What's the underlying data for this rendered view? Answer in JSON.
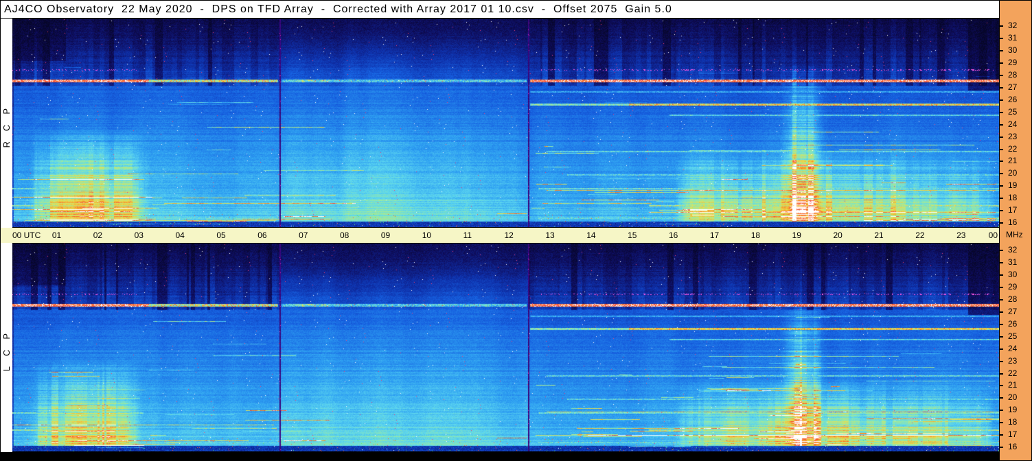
{
  "title": {
    "text": "AJ4CO Observatory  22 May 2020  -  DPS on TFD Array  -  Corrected with Array 2017 01 10.csv  -  Offset 2075  Gain 5.0"
  },
  "colors": {
    "titlebar_bg": "#FFFFFF",
    "time_axis_bg": "#F6F6C6",
    "freq_sidebar_bg": "#F3A35C",
    "left_strip_bg": "#FFFFFF",
    "border": "#000000",
    "bottom_strip_bg": "#000000"
  },
  "time_axis": {
    "labels": [
      "00 UTC",
      "01",
      "02",
      "03",
      "04",
      "05",
      "06",
      "07",
      "08",
      "09",
      "10",
      "11",
      "12",
      "13",
      "14",
      "15",
      "16",
      "17",
      "18",
      "19",
      "20",
      "21",
      "22",
      "23",
      "00"
    ],
    "unit_label": "MHz"
  },
  "freq_axis": {
    "ticks": [
      32,
      31,
      30,
      29,
      28,
      27,
      26,
      25,
      24,
      23,
      22,
      21,
      20,
      19,
      18,
      17,
      16
    ]
  },
  "chart_data": {
    "type": "heatmap",
    "title": "Dual-polarization decametric dynamic spectrum, 22 May 2020 (RCP over LCP)",
    "x_axis": {
      "label": "UTC",
      "min_hour": 0,
      "max_hour": 24
    },
    "y_axis": {
      "label": "MHz",
      "min": 16,
      "max": 32
    },
    "segment_boundaries_utc": [
      6.5,
      12.55
    ],
    "colormap": [
      [
        0.0,
        6,
        6,
        38
      ],
      [
        0.07,
        14,
        12,
        90
      ],
      [
        0.18,
        14,
        48,
        170
      ],
      [
        0.3,
        22,
        96,
        224
      ],
      [
        0.44,
        46,
        160,
        242
      ],
      [
        0.56,
        92,
        214,
        240
      ],
      [
        0.66,
        148,
        233,
        168
      ],
      [
        0.76,
        224,
        226,
        88
      ],
      [
        0.86,
        250,
        170,
        44
      ],
      [
        0.93,
        244,
        78,
        44
      ],
      [
        1.0,
        255,
        255,
        255
      ]
    ],
    "rfi_bands": [
      {
        "mhz": 27.25,
        "px": 4,
        "style": "white",
        "segs": [
          [
            0,
            3.3,
            1.0
          ],
          [
            3.3,
            6.45,
            0.5
          ],
          [
            6.9,
            7.7,
            0.3
          ],
          [
            6.55,
            12.5,
            0.12
          ],
          [
            12.6,
            24,
            0.95
          ]
        ]
      },
      {
        "mhz": 28.1,
        "px": 2,
        "style": "magenta",
        "segs": [
          [
            0,
            3.0,
            0.45
          ],
          [
            12.8,
            24,
            0.5
          ]
        ]
      },
      {
        "mhz": 26.4,
        "px": 2,
        "style": "blue",
        "segs": [
          [
            12.6,
            24,
            0.35
          ]
        ]
      },
      {
        "mhz": 25.45,
        "px": 3,
        "style": "yellow",
        "segs": [
          [
            12.6,
            15,
            0.3
          ],
          [
            15,
            24,
            0.85
          ]
        ]
      },
      {
        "mhz": 24.6,
        "px": 2,
        "style": "green",
        "segs": [
          [
            16,
            24,
            0.3
          ]
        ]
      },
      {
        "mhz": 21.8,
        "px": 2,
        "style": "green",
        "segs": [
          [
            13,
            24,
            0.35
          ]
        ]
      },
      {
        "mhz": 20.0,
        "px": 2,
        "style": "green",
        "segs": [
          [
            13.5,
            24,
            0.3
          ]
        ]
      },
      {
        "mhz": 18.9,
        "px": 2,
        "style": "green",
        "segs": [
          [
            0,
            3.2,
            0.5
          ],
          [
            12.8,
            24,
            0.45
          ]
        ]
      },
      {
        "mhz": 17.6,
        "px": 2,
        "style": "yellow",
        "segs": [
          [
            0,
            2.5,
            0.45
          ],
          [
            15.5,
            24,
            0.5
          ]
        ]
      },
      {
        "mhz": 16.65,
        "px": 2,
        "style": "green",
        "segs": [
          [
            0.3,
            6.4,
            0.3
          ],
          [
            12.8,
            24,
            0.35
          ]
        ]
      }
    ],
    "panels": [
      {
        "id": "rcp",
        "label": "RCP",
        "seed": 7,
        "emissions": [
          {
            "t0": 0.3,
            "t1": 3.4,
            "tp": 1.9,
            "w": 0.9,
            "fmax": 23.5,
            "amp": 0.45
          },
          {
            "t0": 16.0,
            "t1": 24.0,
            "tp": 19.6,
            "w": 2.6,
            "fmax": 22.0,
            "amp": 0.4
          },
          {
            "t0": 18.6,
            "t1": 19.9,
            "tp": 19.2,
            "w": 0.35,
            "fmax": 28.5,
            "amp": 0.5,
            "pw": 0.45
          }
        ],
        "extra_lines": [
          {
            "f": 18.3,
            "t0": 0,
            "t1": 3.4,
            "s": 0.55
          },
          {
            "f": 17.3,
            "t0": 0,
            "t1": 2.2,
            "s": 0.5
          },
          {
            "f": 16.5,
            "t0": 0.3,
            "t1": 6.4,
            "s": 0.3
          },
          {
            "f": 16.8,
            "t0": 6.6,
            "t1": 7.6,
            "s": 0.5
          },
          {
            "f": 17.0,
            "t0": 11.8,
            "t1": 12.5,
            "s": 0.4
          },
          {
            "f": 18.8,
            "t0": 13,
            "t1": 24,
            "s": 0.4
          },
          {
            "f": 17.1,
            "t0": 15.5,
            "t1": 24,
            "s": 0.45
          }
        ]
      },
      {
        "id": "lcp",
        "label": "LCP",
        "seed": 13,
        "emissions": [
          {
            "t0": 0.3,
            "t1": 3.2,
            "tp": 1.9,
            "w": 0.9,
            "fmax": 23.0,
            "amp": 0.42
          },
          {
            "t0": 16.0,
            "t1": 24.0,
            "tp": 19.6,
            "w": 2.6,
            "fmax": 21.5,
            "amp": 0.38
          },
          {
            "t0": 18.6,
            "t1": 19.9,
            "tp": 19.2,
            "w": 0.35,
            "fmax": 27.5,
            "amp": 0.45,
            "pw": 0.45
          }
        ],
        "extra_lines": [
          {
            "f": 16.4,
            "t0": 1.5,
            "t1": 3.2,
            "s": 0.8
          },
          {
            "f": 18.0,
            "t0": 0,
            "t1": 2.5,
            "s": 0.45
          },
          {
            "f": 16.8,
            "t0": 6.6,
            "t1": 7.6,
            "s": 0.45
          },
          {
            "f": 17.0,
            "t0": 11.8,
            "t1": 12.5,
            "s": 0.35
          },
          {
            "f": 17.2,
            "t0": 14,
            "t1": 24,
            "s": 0.5
          },
          {
            "f": 19.0,
            "t0": 13,
            "t1": 24,
            "s": 0.35
          }
        ]
      }
    ]
  }
}
